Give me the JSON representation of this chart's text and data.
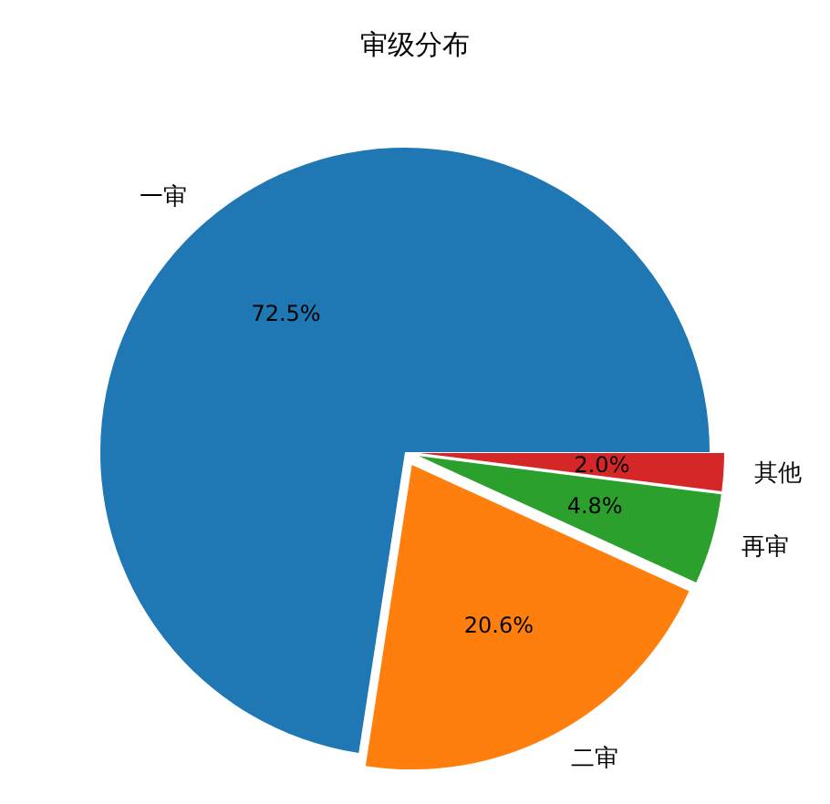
{
  "chart_data": {
    "type": "pie",
    "title": "审级分布",
    "categories": [
      "一审",
      "二审",
      "再审",
      "其他"
    ],
    "values": [
      72.5,
      20.6,
      4.8,
      2.0
    ],
    "colors": [
      "#1f77b4",
      "#ff7f0e",
      "#2ca02c",
      "#d62728"
    ],
    "value_labels": [
      "72.5%",
      "20.6%",
      "4.8%",
      "2.0%"
    ]
  }
}
